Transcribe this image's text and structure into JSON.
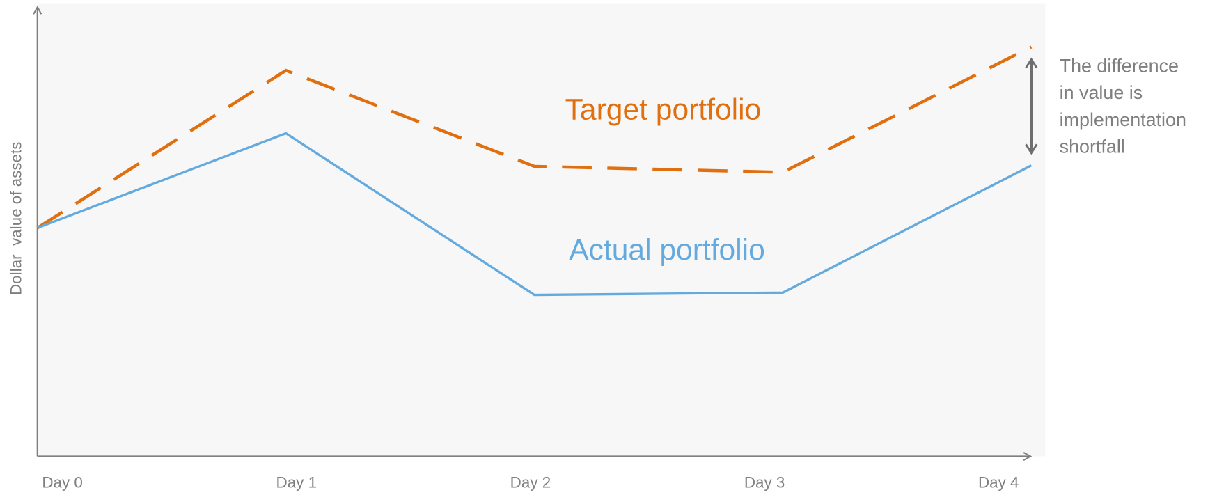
{
  "chart_data": {
    "type": "line",
    "y_label": "Dollar  value of assets",
    "categories": [
      "Day 0",
      "Day 1",
      "Day 2",
      "Day 3",
      "Day 4"
    ],
    "ylim": [
      0,
      100
    ],
    "series": [
      {
        "name": "Target portfolio",
        "color": "#e0700f",
        "linestyle": "dashed",
        "values": [
          50.5,
          85.3,
          64.1,
          62.8,
          90.5
        ]
      },
      {
        "name": "Actual portfolio",
        "color": "#64aade",
        "linestyle": "solid",
        "values": [
          50.5,
          71.4,
          35.7,
          36.2,
          64.3
        ]
      }
    ],
    "annotation": [
      "The difference",
      "in value is",
      "implementation",
      "shortfall"
    ]
  }
}
